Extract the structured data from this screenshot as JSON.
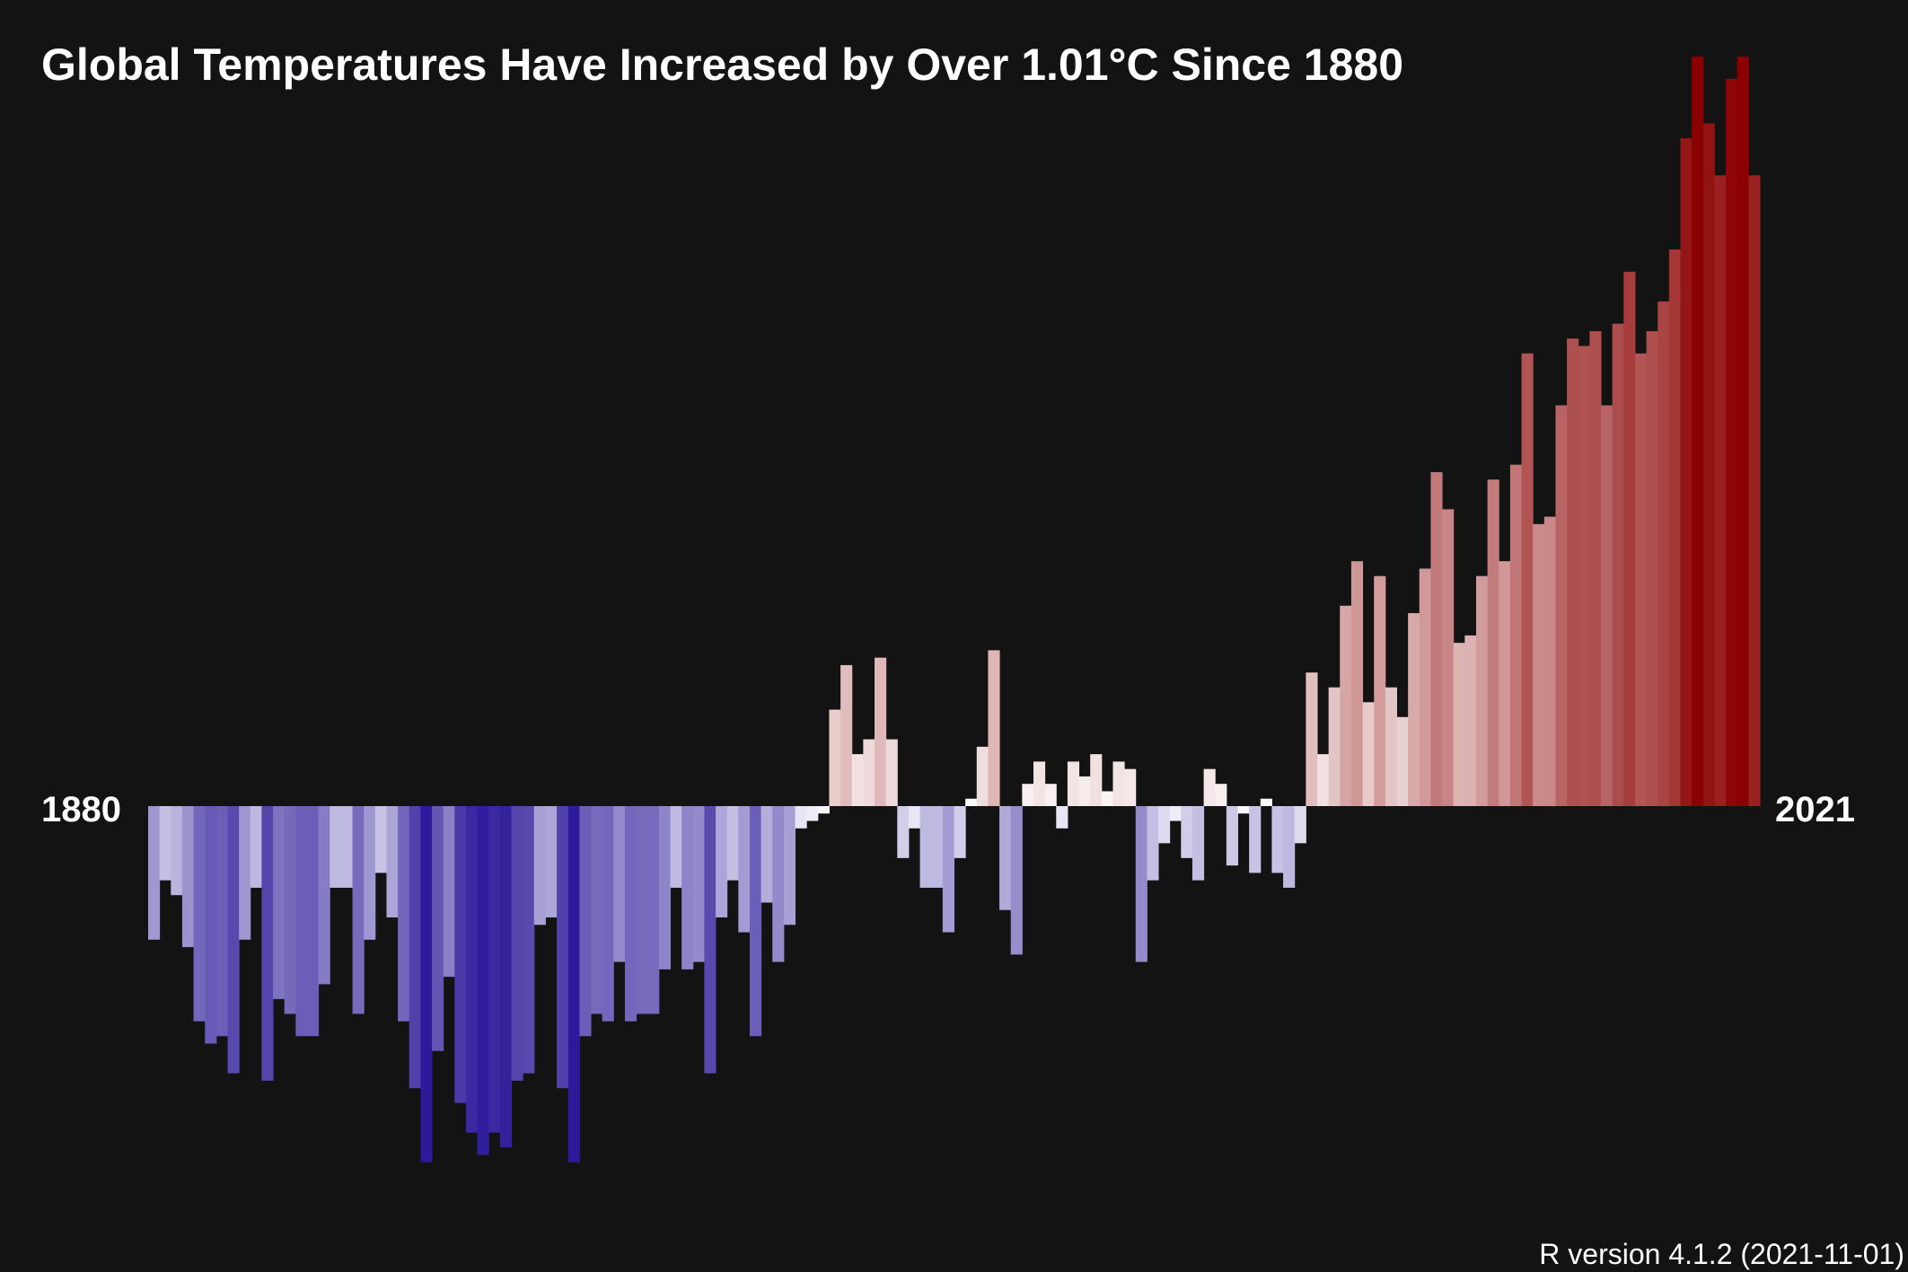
{
  "chart_data": {
    "type": "bar",
    "title": "Global Temperatures Have Increased by Over 1.01°C Since 1880",
    "start_year_label": "1880",
    "end_year_label": "2021",
    "caption": "R version 4.1.2 (2021-11-01)",
    "x_start": 1880,
    "x_end": 2021,
    "ylim": [
      -0.5,
      1.03
    ],
    "grid": false,
    "legend": "none",
    "colors": {
      "background": "#131313",
      "cold": "#2d1a9a",
      "neutral": "#ffffff",
      "warm": "#8b0000",
      "text": "#ffffff"
    },
    "values": [
      -0.18,
      -0.1,
      -0.12,
      -0.19,
      -0.29,
      -0.32,
      -0.31,
      -0.36,
      -0.18,
      -0.11,
      -0.37,
      -0.26,
      -0.28,
      -0.31,
      -0.31,
      -0.24,
      -0.11,
      -0.11,
      -0.28,
      -0.18,
      -0.09,
      -0.15,
      -0.29,
      -0.38,
      -0.48,
      -0.33,
      -0.23,
      -0.4,
      -0.44,
      -0.47,
      -0.44,
      -0.46,
      -0.37,
      -0.36,
      -0.16,
      -0.15,
      -0.38,
      -0.48,
      -0.31,
      -0.28,
      -0.29,
      -0.21,
      -0.29,
      -0.28,
      -0.28,
      -0.22,
      -0.11,
      -0.22,
      -0.21,
      -0.36,
      -0.15,
      -0.1,
      -0.17,
      -0.31,
      -0.13,
      -0.21,
      -0.16,
      -0.03,
      -0.02,
      -0.01,
      0.13,
      0.19,
      0.07,
      0.09,
      0.2,
      0.09,
      -0.07,
      -0.03,
      -0.11,
      -0.11,
      -0.17,
      -0.07,
      0.01,
      0.08,
      0.21,
      -0.14,
      -0.2,
      0.03,
      0.06,
      0.03,
      -0.03,
      0.06,
      0.04,
      0.07,
      0.02,
      0.06,
      0.05,
      -0.21,
      -0.1,
      -0.05,
      -0.02,
      -0.07,
      -0.1,
      0.05,
      0.03,
      -0.08,
      -0.01,
      -0.09,
      0.01,
      -0.09,
      -0.11,
      -0.05,
      0.18,
      0.07,
      0.16,
      0.27,
      0.33,
      0.14,
      0.31,
      0.16,
      0.12,
      0.26,
      0.32,
      0.45,
      0.4,
      0.22,
      0.23,
      0.31,
      0.44,
      0.33,
      0.46,
      0.61,
      0.38,
      0.39,
      0.54,
      0.63,
      0.62,
      0.64,
      0.54,
      0.65,
      0.72,
      0.61,
      0.64,
      0.68,
      0.75,
      0.9,
      1.01,
      0.92,
      0.85,
      0.98,
      1.01,
      0.85
    ]
  }
}
